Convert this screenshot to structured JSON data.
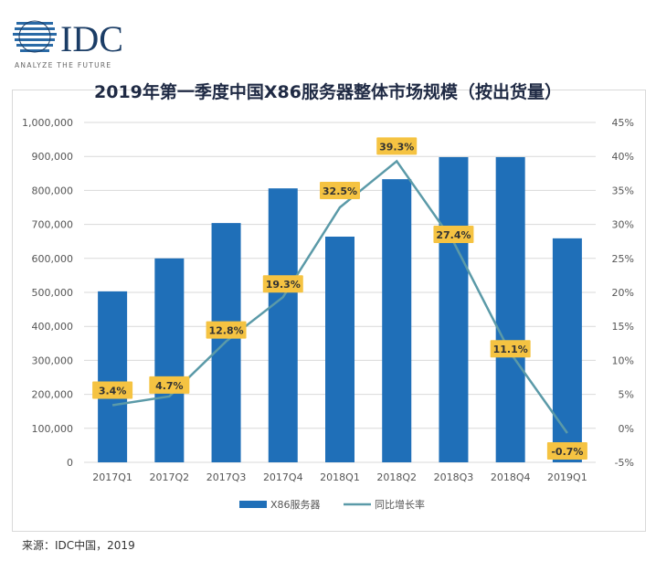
{
  "logo": {
    "text": "IDC",
    "tagline": "ANALYZE THE FUTURE"
  },
  "source": "来源：IDC中国，2019",
  "chart_data": {
    "type": "bar+line",
    "title": "2019年第一季度中国X86服务器整体市场规模（按出货量）",
    "categories": [
      "2017Q1",
      "2017Q2",
      "2017Q3",
      "2017Q4",
      "2018Q1",
      "2018Q2",
      "2018Q3",
      "2018Q4",
      "2019Q1"
    ],
    "series": [
      {
        "name": "X86服务器",
        "type": "bar",
        "axis": "left",
        "color": "#1f6fb8",
        "values": [
          503000,
          600000,
          704000,
          806000,
          664000,
          833000,
          898000,
          898000,
          659000
        ]
      },
      {
        "name": "同比增长率",
        "type": "line",
        "axis": "right",
        "color": "#5b9aa8",
        "values": [
          3.4,
          4.7,
          12.8,
          19.3,
          32.5,
          39.3,
          27.4,
          11.1,
          -0.7
        ],
        "labels": [
          "3.4%",
          "4.7%",
          "12.8%",
          "19.3%",
          "32.5%",
          "39.3%",
          "27.4%",
          "11.1%",
          "-0.7%"
        ],
        "label_color": "#f5c342"
      }
    ],
    "y_left": {
      "range": [
        0,
        1000000
      ],
      "ticks": [
        "0",
        "100,000",
        "200,000",
        "300,000",
        "400,000",
        "500,000",
        "600,000",
        "700,000",
        "800,000",
        "900,000",
        "1,000,000"
      ]
    },
    "y_right": {
      "range": [
        -5,
        45
      ],
      "ticks": [
        "-5%",
        "0%",
        "5%",
        "10%",
        "15%",
        "20%",
        "25%",
        "30%",
        "35%",
        "40%",
        "45%"
      ]
    },
    "grid": true,
    "legend_position": "bottom"
  }
}
